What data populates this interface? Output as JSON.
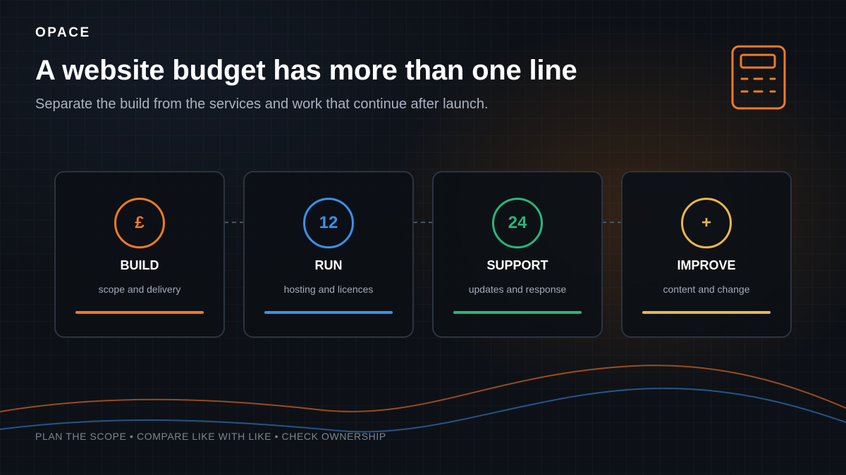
{
  "header": {
    "brand": "OPACE",
    "title": "A website budget has more than one line",
    "subtitle": "Separate the build from the services and work that continue after launch."
  },
  "icon": {
    "name": "calculator-icon",
    "color": "#f07b24"
  },
  "cards": [
    {
      "badge": "£",
      "title": "BUILD",
      "desc": "scope and delivery",
      "color": "#f07b24"
    },
    {
      "badge": "12",
      "title": "RUN",
      "desc": "hosting and licences",
      "color": "#3b91ea"
    },
    {
      "badge": "24",
      "title": "SUPPORT",
      "desc": "updates and response",
      "color": "#27b67a"
    },
    {
      "badge": "+",
      "title": "IMPROVE",
      "desc": "content and change",
      "color": "#e8b84a"
    }
  ],
  "footer": {
    "text": "PLAN THE SCOPE • COMPARE LIKE WITH LIKE • CHECK OWNERSHIP"
  }
}
